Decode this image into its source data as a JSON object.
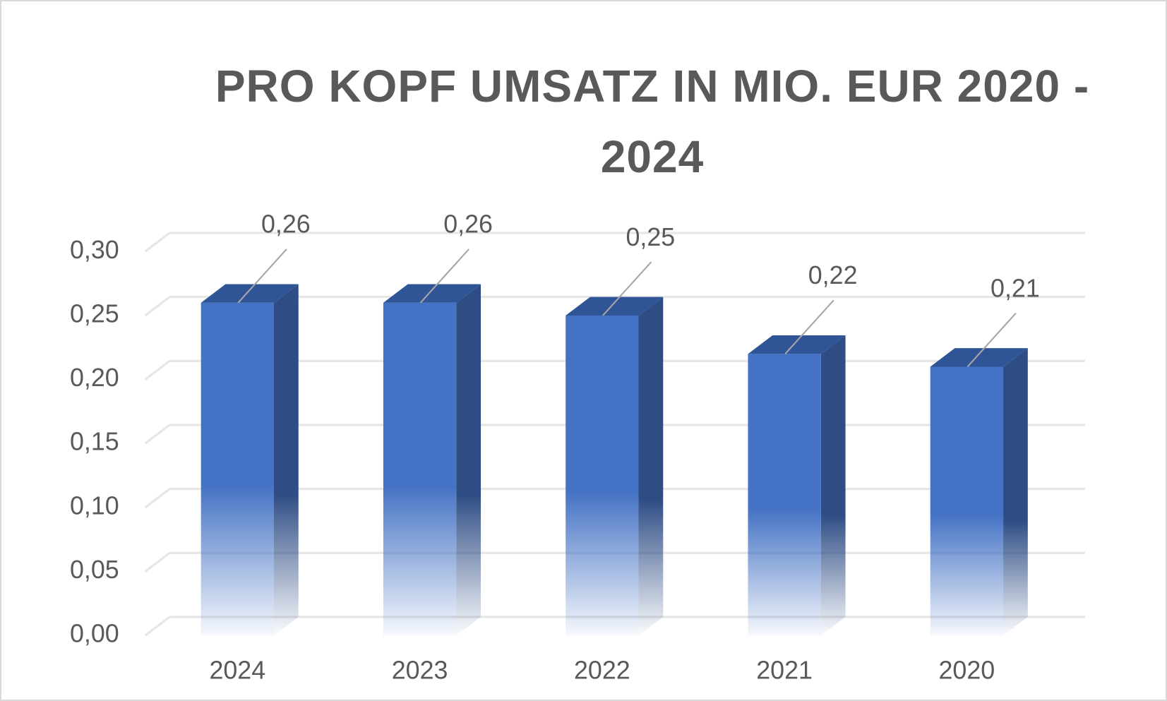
{
  "chart_data": {
    "type": "bar3d",
    "title": "PRO KOPF UMSATZ IN MIO. EUR 2020 - 2024",
    "categories": [
      "2024",
      "2023",
      "2022",
      "2021",
      "2020"
    ],
    "values": [
      0.26,
      0.26,
      0.25,
      0.22,
      0.21
    ],
    "value_labels": [
      "0,26",
      "0,26",
      "0,25",
      "0,22",
      "0,21"
    ],
    "color": "#4472c4",
    "ylim": [
      0,
      0.3
    ],
    "yticks": [
      {
        "value": 0,
        "label": "0,00"
      },
      {
        "value": 0.05,
        "label": "0,05"
      },
      {
        "value": 0.1,
        "label": "0,10"
      },
      {
        "value": 0.15,
        "label": "0,15"
      },
      {
        "value": 0.2,
        "label": "0,20"
      },
      {
        "value": 0.25,
        "label": "0,25"
      },
      {
        "value": 0.3,
        "label": "0,30"
      }
    ],
    "grid": true
  }
}
